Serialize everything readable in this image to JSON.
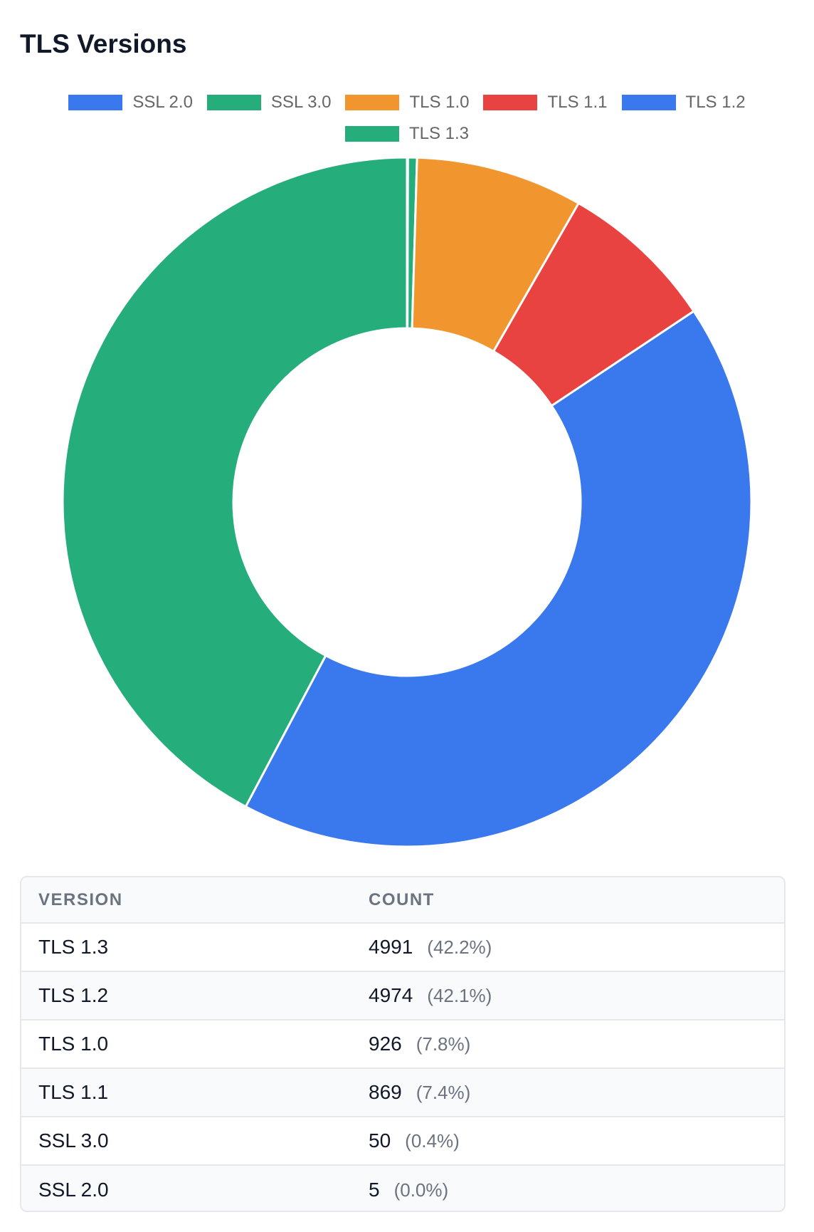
{
  "title": "TLS Versions",
  "legend": [
    {
      "label": "SSL 2.0",
      "color": "#3a78ee"
    },
    {
      "label": "SSL 3.0",
      "color": "#25ae7c"
    },
    {
      "label": "TLS 1.0",
      "color": "#f1962f"
    },
    {
      "label": "TLS 1.1",
      "color": "#e94341"
    },
    {
      "label": "TLS 1.2",
      "color": "#3a78ee"
    },
    {
      "label": "TLS 1.3",
      "color": "#25ae7c"
    }
  ],
  "chart_data": {
    "type": "pie",
    "variant": "doughnut",
    "categories": [
      "SSL 2.0",
      "SSL 3.0",
      "TLS 1.0",
      "TLS 1.1",
      "TLS 1.2",
      "TLS 1.3"
    ],
    "values": [
      5,
      50,
      926,
      869,
      4974,
      4991
    ],
    "colors": [
      "#3a78ee",
      "#25ae7c",
      "#f1962f",
      "#e94341",
      "#3a78ee",
      "#25ae7c"
    ],
    "legend_position": "top"
  },
  "table": {
    "headers": {
      "version": "VERSION",
      "count": "COUNT"
    },
    "rows": [
      {
        "version": "TLS 1.3",
        "count": "4991",
        "pct": "(42.2%)"
      },
      {
        "version": "TLS 1.2",
        "count": "4974",
        "pct": "(42.1%)"
      },
      {
        "version": "TLS 1.0",
        "count": "926",
        "pct": "(7.8%)"
      },
      {
        "version": "TLS 1.1",
        "count": "869",
        "pct": "(7.4%)"
      },
      {
        "version": "SSL 3.0",
        "count": "50",
        "pct": "(0.4%)"
      },
      {
        "version": "SSL 2.0",
        "count": "5",
        "pct": "(0.0%)"
      }
    ]
  }
}
